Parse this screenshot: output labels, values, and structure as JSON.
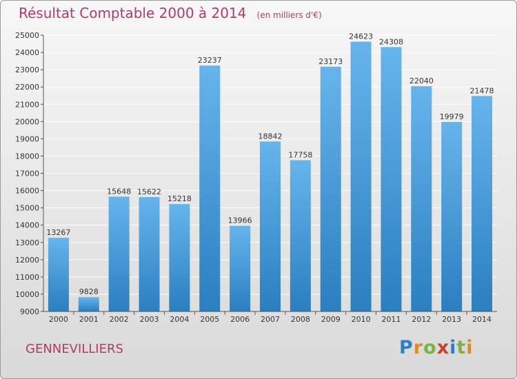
{
  "title": "Résultat Comptable 2000 à 2014",
  "subtitle": "(en milliers d'€)",
  "location": "GENNEVILLIERS",
  "brand": {
    "letters": [
      "P",
      "r",
      "o",
      "x",
      "i",
      "t",
      "i"
    ],
    "colors": [
      "#2f7fc1",
      "#e0892a",
      "#7cb342",
      "#c8402f",
      "#2f7fc1",
      "#7cb342",
      "#e0892a"
    ]
  },
  "colors": {
    "bar_light": "#67b4ec",
    "bar_dark": "#2a7fc0",
    "title": "#b23a6a",
    "grid": "#ffffff"
  },
  "chart_data": {
    "type": "bar",
    "categories": [
      "2000",
      "2001",
      "2002",
      "2003",
      "2004",
      "2005",
      "2006",
      "2007",
      "2008",
      "2009",
      "2010",
      "2011",
      "2012",
      "2013",
      "2014"
    ],
    "values": [
      13267,
      9828,
      15648,
      15622,
      15218,
      23237,
      13966,
      18842,
      17758,
      23173,
      24623,
      24308,
      22040,
      19979,
      21478
    ],
    "data_labels": [
      "13267",
      "9828",
      "15648",
      "15622",
      "15218",
      "23237",
      "13966",
      "18842",
      "17758",
      "23173",
      "24623",
      "24308",
      "22040",
      "19979",
      "21478"
    ],
    "ylim": [
      9000,
      25000
    ],
    "yticks": [
      9000,
      10000,
      11000,
      12000,
      13000,
      14000,
      15000,
      16000,
      17000,
      18000,
      19000,
      20000,
      21000,
      22000,
      23000,
      24000,
      25000
    ],
    "xlabel": "",
    "ylabel": "",
    "grid": true
  }
}
